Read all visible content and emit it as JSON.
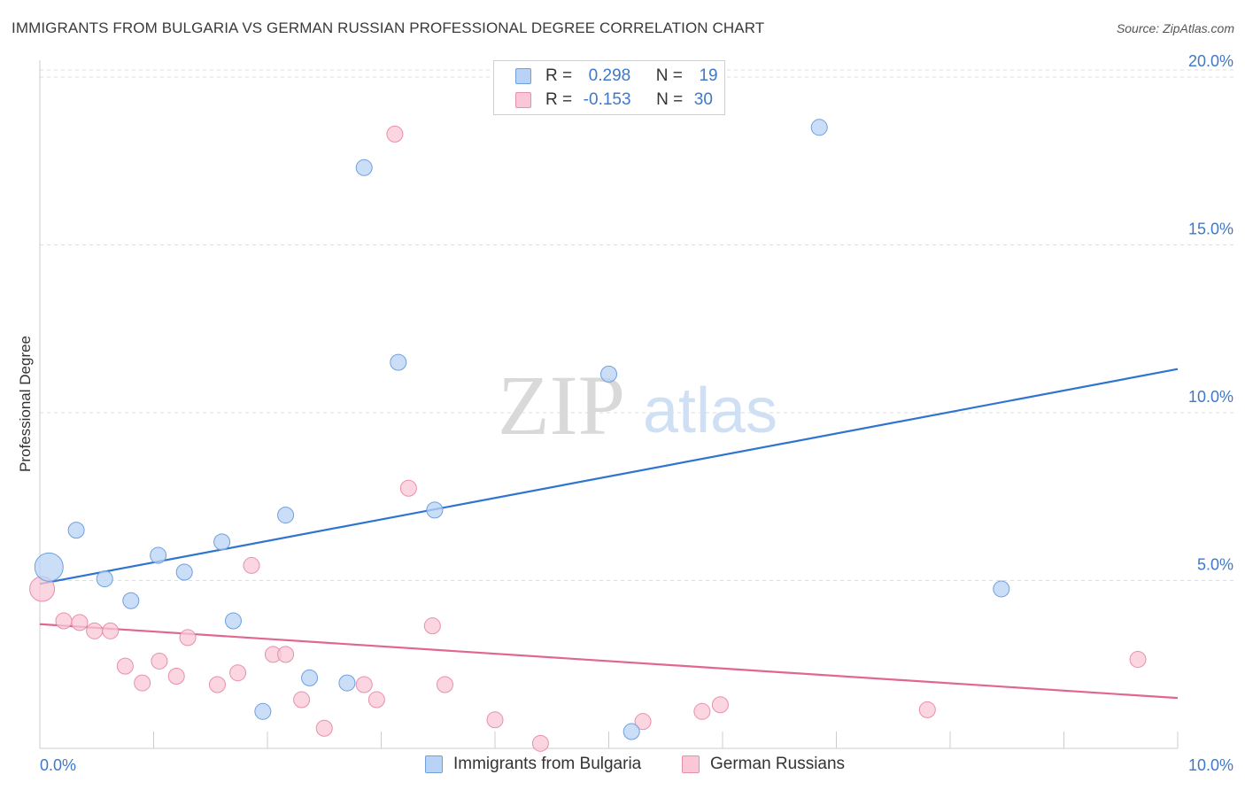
{
  "title": "IMMIGRANTS FROM BULGARIA VS GERMAN RUSSIAN PROFESSIONAL DEGREE CORRELATION CHART",
  "source": "Source: ZipAtlas.com",
  "watermark": {
    "zip": "ZIP",
    "atlas": "atlas"
  },
  "legend_top": {
    "r_label": "R =",
    "n_label": "N =",
    "rows": [
      {
        "r": "0.298",
        "n": "19",
        "color": "#b8d3f5",
        "border": "#6f9fdc"
      },
      {
        "r": "-0.153",
        "n": "30",
        "color": "#f9c7d6",
        "border": "#e88fab"
      }
    ]
  },
  "legend_bottom": [
    {
      "label": "Immigrants from Bulgaria",
      "color": "#b8d3f5",
      "border": "#6f9fdc"
    },
    {
      "label": "German Russians",
      "color": "#f9c7d6",
      "border": "#e88fab"
    }
  ],
  "chart_data": {
    "type": "scatter",
    "ylabel": "Professional Degree",
    "xlabel": "",
    "xlim": [
      0,
      10
    ],
    "ylim": [
      0,
      20.5
    ],
    "x_tick_labels": [
      "0.0%",
      "10.0%"
    ],
    "y_tick_labels": [
      {
        "value": 5,
        "label": "5.0%"
      },
      {
        "value": 10,
        "label": "10.0%"
      },
      {
        "value": 15,
        "label": "15.0%"
      },
      {
        "value": 20,
        "label": "20.0%"
      }
    ],
    "grid": true,
    "series": [
      {
        "name": "Immigrants from Bulgaria",
        "color": "#b8d3f5",
        "stroke": "#6f9fdc",
        "line_color": "#2f74d0",
        "trend": [
          [
            0,
            4.9
          ],
          [
            10,
            11.3
          ]
        ],
        "points": [
          [
            0.08,
            5.4,
            16
          ],
          [
            0.32,
            6.5,
            9
          ],
          [
            0.57,
            5.05,
            9
          ],
          [
            0.8,
            4.4,
            9
          ],
          [
            1.04,
            5.75,
            9
          ],
          [
            1.27,
            5.25,
            9
          ],
          [
            1.6,
            6.15,
            9
          ],
          [
            1.7,
            3.8,
            9
          ],
          [
            1.96,
            1.1,
            9
          ],
          [
            2.16,
            6.95,
            9
          ],
          [
            2.37,
            2.1,
            9
          ],
          [
            2.7,
            1.95,
            9
          ],
          [
            2.85,
            17.3,
            9
          ],
          [
            3.15,
            11.5,
            9
          ],
          [
            3.47,
            7.1,
            9
          ],
          [
            5.0,
            11.15,
            9
          ],
          [
            5.2,
            0.5,
            9
          ],
          [
            6.85,
            18.5,
            9
          ],
          [
            8.45,
            4.75,
            9
          ]
        ]
      },
      {
        "name": "German Russians",
        "color": "#f9c7d6",
        "stroke": "#e88fab",
        "line_color": "#e0678f",
        "trend": [
          [
            0,
            3.7
          ],
          [
            10,
            1.5
          ]
        ],
        "points": [
          [
            0.02,
            4.75,
            14
          ],
          [
            0.21,
            3.8,
            9
          ],
          [
            0.35,
            3.75,
            9
          ],
          [
            0.48,
            3.5,
            9
          ],
          [
            0.62,
            3.5,
            9
          ],
          [
            0.75,
            2.45,
            9
          ],
          [
            0.9,
            1.95,
            9
          ],
          [
            1.05,
            2.6,
            9
          ],
          [
            1.2,
            2.15,
            9
          ],
          [
            1.3,
            3.3,
            9
          ],
          [
            1.56,
            1.9,
            9
          ],
          [
            1.74,
            2.25,
            9
          ],
          [
            1.86,
            5.45,
            9
          ],
          [
            2.05,
            2.8,
            9
          ],
          [
            2.16,
            2.8,
            9
          ],
          [
            2.3,
            1.45,
            9
          ],
          [
            2.5,
            0.6,
            9
          ],
          [
            2.85,
            1.9,
            9
          ],
          [
            2.96,
            1.45,
            9
          ],
          [
            3.12,
            18.3,
            9
          ],
          [
            3.24,
            7.75,
            9
          ],
          [
            3.45,
            3.65,
            9
          ],
          [
            3.56,
            1.9,
            9
          ],
          [
            4.0,
            0.85,
            9
          ],
          [
            4.4,
            0.15,
            9
          ],
          [
            5.3,
            0.8,
            9
          ],
          [
            5.82,
            1.1,
            9
          ],
          [
            5.98,
            1.3,
            9
          ],
          [
            7.8,
            1.15,
            9
          ],
          [
            9.65,
            2.65,
            9
          ]
        ]
      }
    ]
  }
}
